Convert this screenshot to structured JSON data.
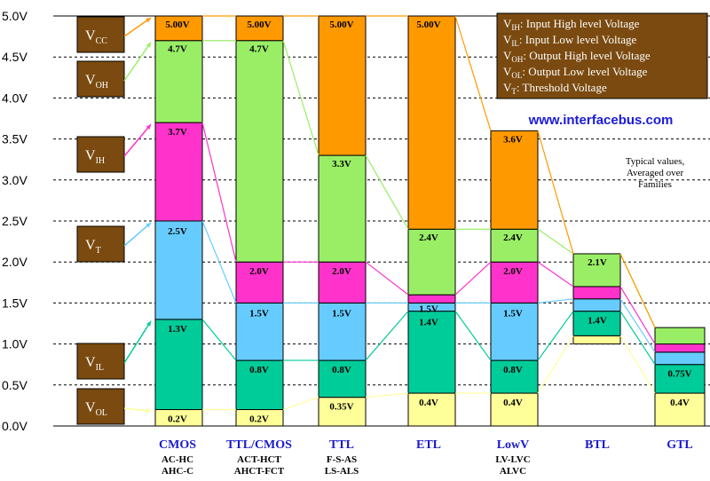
{
  "chart_data": {
    "type": "bar",
    "title": "",
    "xlabel": "",
    "ylabel": "",
    "ylim": [
      0,
      5.0
    ],
    "yticks": [
      {
        "value": 0.0,
        "label": "0.0V"
      },
      {
        "value": 0.5,
        "label": "0.5V"
      },
      {
        "value": 1.0,
        "label": "1.0V"
      },
      {
        "value": 1.5,
        "label": "1.5V"
      },
      {
        "value": 2.0,
        "label": "2.0V"
      },
      {
        "value": 2.5,
        "label": "2.5V"
      },
      {
        "value": 3.0,
        "label": "3.0V"
      },
      {
        "value": 3.5,
        "label": "3.5V"
      },
      {
        "value": 4.0,
        "label": "4.0V"
      },
      {
        "value": 4.5,
        "label": "4.5V"
      },
      {
        "value": 5.0,
        "label": "5.0V"
      }
    ],
    "colors": {
      "vcc": "#ff9900",
      "voh": "#99ee66",
      "vih": "#ff33cc",
      "vt": "#66ccff",
      "vil": "#00cc99",
      "vol": "#ffff99",
      "label_box": "#7a4a10",
      "url": "#1a1add",
      "category": "#1a1acc"
    },
    "categories": [
      {
        "name": "CMOS",
        "sub": [
          "AC-HC",
          "AHC-C"
        ],
        "vcc": 5.0,
        "voh": 4.7,
        "vih": 3.7,
        "vt": 2.5,
        "vil": 1.3,
        "vol": 0.2,
        "labels": {
          "vcc": "5.00V",
          "voh": "4.7V",
          "vih": "3.7V",
          "vt": "2.5V",
          "vil": "1.3V",
          "vol": "0.2V"
        }
      },
      {
        "name": "TTL/CMOS",
        "sub": [
          "ACT-HCT",
          "AHCT-FCT"
        ],
        "vcc": 5.0,
        "voh": 4.7,
        "vih": 2.0,
        "vt": 1.5,
        "vil": 0.8,
        "vol": 0.2,
        "labels": {
          "vcc": "5.00V",
          "voh": "4.7V",
          "vih": "2.0V",
          "vt": "1.5V",
          "vil": "0.8V",
          "vol": "0.2V"
        }
      },
      {
        "name": "TTL",
        "sub": [
          "F-S-AS",
          "LS-ALS"
        ],
        "vcc": 5.0,
        "voh": 3.3,
        "vih": 2.0,
        "vt": 1.5,
        "vil": 0.8,
        "vol": 0.35,
        "labels": {
          "vcc": "5.00V",
          "voh": "3.3V",
          "vih": "2.0V",
          "vt": "1.5V",
          "vil": "0.8V",
          "vol": "0.35V"
        }
      },
      {
        "name": "ETL",
        "sub": [],
        "vcc": 5.0,
        "voh": 2.4,
        "vih": 1.6,
        "vt": 1.5,
        "vil": 1.4,
        "vol": 0.4,
        "labels": {
          "vcc": "5.00V",
          "voh": "2.4V",
          "vih": "",
          "vt": "1.5V",
          "vil": "1.4V",
          "vol": "0.4V"
        }
      },
      {
        "name": "LowV",
        "sub": [
          "LV-LVC",
          "ALVC"
        ],
        "vcc": 3.6,
        "voh": 2.4,
        "vih": 2.0,
        "vt": 1.5,
        "vil": 0.8,
        "vol": 0.4,
        "labels": {
          "vcc": "3.6V",
          "voh": "2.4V",
          "vih": "2.0V",
          "vt": "1.5V",
          "vil": "0.8V",
          "vol": "0.4V"
        }
      },
      {
        "name": "BTL",
        "sub": [],
        "vcc": 2.1,
        "voh": 2.1,
        "vih": 1.7,
        "vt": 1.55,
        "vil": 1.4,
        "vol": 1.1,
        "base": 1.0,
        "labels": {
          "vcc": "",
          "voh": "2.1V",
          "vih": "",
          "vt": "",
          "vil": "1.4V",
          "vol": ""
        }
      },
      {
        "name": "GTL",
        "sub": [],
        "vcc": 1.2,
        "voh": 1.2,
        "vih": 1.0,
        "vt": 0.9,
        "vil": 0.75,
        "vol": 0.4,
        "labels": {
          "vcc": "",
          "voh": "",
          "vih": "",
          "vt": "",
          "vil": "0.75V",
          "vol": "0.4V"
        }
      }
    ],
    "level_labels": [
      {
        "main": "V",
        "sub": "CC",
        "key": "vcc",
        "value": 5.0
      },
      {
        "main": "V",
        "sub": "OH",
        "key": "voh",
        "value": 4.7
      },
      {
        "main": "V",
        "sub": "IH",
        "key": "vih",
        "value": 3.7
      },
      {
        "main": "V",
        "sub": "T",
        "key": "vt",
        "value": 2.5
      },
      {
        "main": "V",
        "sub": "IL",
        "key": "vil",
        "value": 1.3
      },
      {
        "main": "V",
        "sub": "OL",
        "key": "vol",
        "value": 0.2
      }
    ],
    "legend": [
      {
        "sym": "V",
        "sub": "IH",
        "text": ":   Input High level Voltage"
      },
      {
        "sym": "V",
        "sub": "IL",
        "text": ":    Input Low level Voltage"
      },
      {
        "sym": "V",
        "sub": "OH",
        "text": ":  Output High level Voltage"
      },
      {
        "sym": "V",
        "sub": "OL",
        "text": ":  Output Low level Voltage"
      },
      {
        "sym": "V",
        "sub": "T",
        "text": ":      Threshold Voltage"
      }
    ],
    "url": "www.interfacebus.com",
    "note": [
      "Typical values,",
      "Averaged over",
      "Families"
    ]
  }
}
